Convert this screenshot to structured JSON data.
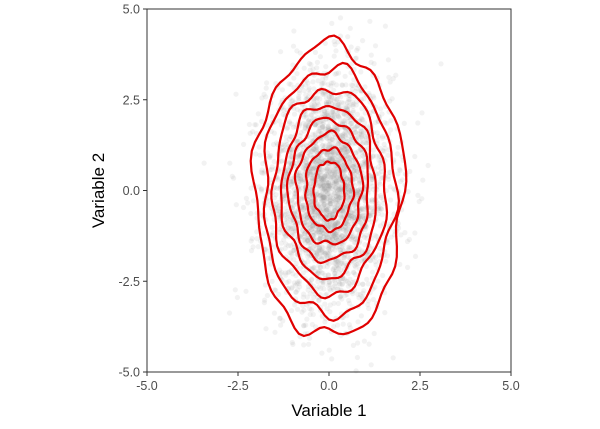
{
  "chart_data": {
    "type": "scatter",
    "title": "",
    "xlabel": "Variable 1",
    "ylabel": "Variable 2",
    "xlim": [
      -5.0,
      5.0
    ],
    "ylim": [
      -5.0,
      5.0
    ],
    "xticks": [
      -5.0,
      -2.5,
      0.0,
      2.5,
      5.0
    ],
    "yticks": [
      -5.0,
      -2.5,
      0.0,
      2.5,
      5.0
    ],
    "xtick_labels": [
      "-5.0",
      "-2.5",
      "0.0",
      "2.5",
      "5.0"
    ],
    "ytick_labels": [
      "-5.0",
      "-2.5",
      "0.0",
      "2.5",
      "5.0"
    ],
    "grid": false,
    "legend": "none",
    "overlay": "2d-density-contours",
    "scatter": {
      "color": "#9e9e9e",
      "opacity": 0.13,
      "approx_count": 3000,
      "distribution": {
        "x_mean": 0.0,
        "x_sd": 0.85,
        "y_mean": 0.0,
        "y_sd": 1.6
      }
    },
    "contour_color": "#e00000",
    "contours": [
      {
        "x_half_width": 2.05,
        "y_top": 4.0,
        "y_bottom": -4.05
      },
      {
        "x_half_width": 1.8,
        "y_top": 3.35,
        "y_bottom": -3.45
      },
      {
        "x_half_width": 1.55,
        "y_top": 2.8,
        "y_bottom": -2.85
      },
      {
        "x_half_width": 1.3,
        "y_top": 2.35,
        "y_bottom": -2.4
      },
      {
        "x_half_width": 1.1,
        "y_top": 1.95,
        "y_bottom": -1.95
      },
      {
        "x_half_width": 0.9,
        "y_top": 1.55,
        "y_bottom": -1.5
      },
      {
        "x_half_width": 0.65,
        "y_top": 1.15,
        "y_bottom": -1.1
      },
      {
        "x_half_width": 0.42,
        "y_top": 0.8,
        "y_bottom": -0.8
      }
    ]
  }
}
